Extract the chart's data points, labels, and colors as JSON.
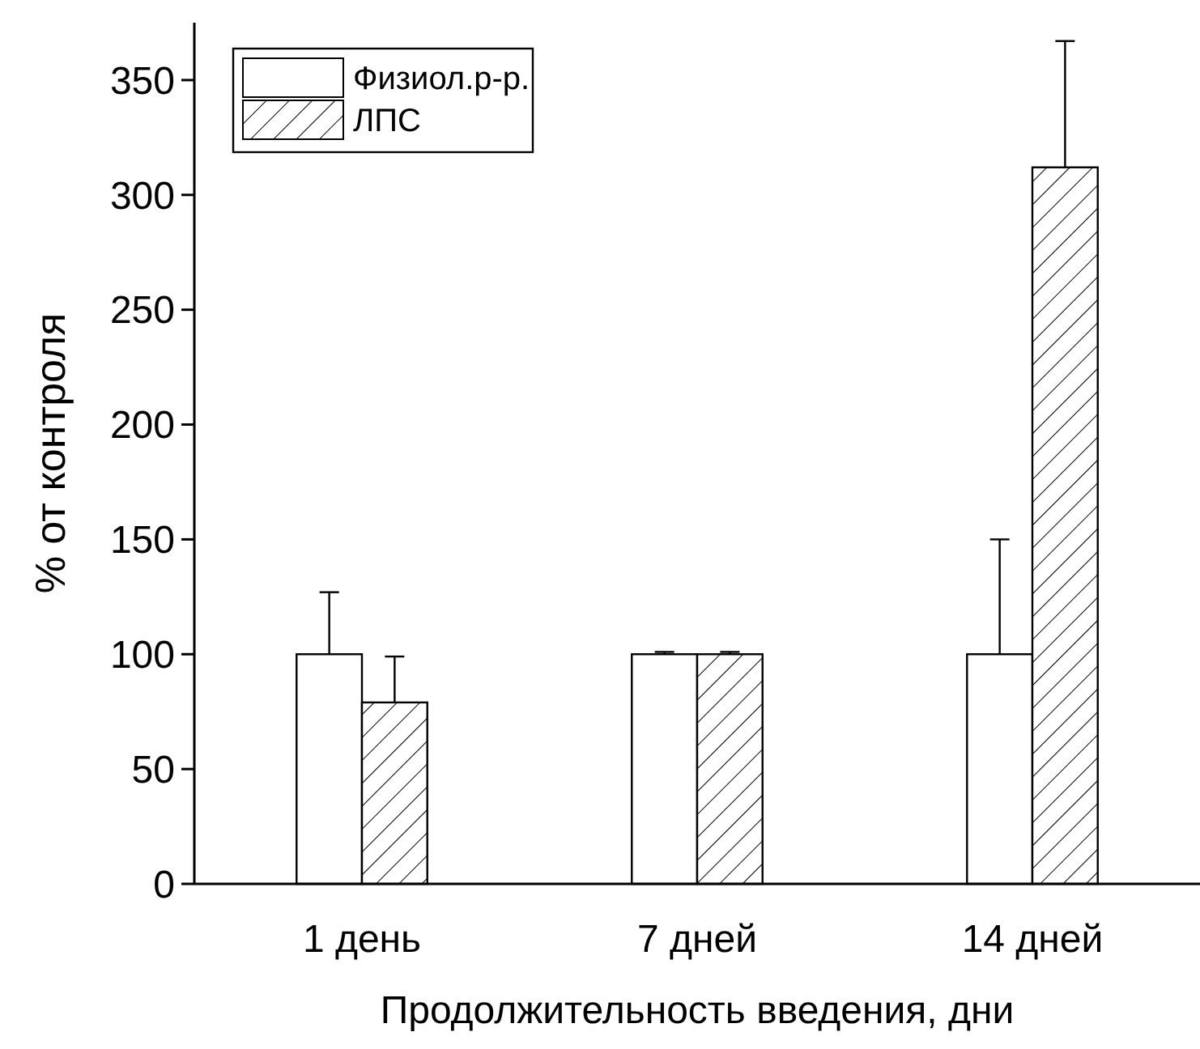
{
  "chart_data": {
    "type": "bar",
    "xlabel": "Продолжительность введения, дни",
    "ylabel": "% от контроля",
    "categories": [
      "1 день",
      "7 дней",
      "14 дней"
    ],
    "series": [
      {
        "name": "Физиол.р-р.",
        "color": "#ffffff",
        "values": [
          100,
          100,
          100
        ],
        "errors": [
          27,
          1,
          50
        ]
      },
      {
        "name": "ЛПС",
        "color": "#000000",
        "values": [
          79,
          100,
          312
        ],
        "errors": [
          20,
          1,
          55
        ]
      }
    ],
    "ylim": [
      0,
      375
    ],
    "yticks": [
      0,
      50,
      100,
      150,
      200,
      250,
      300,
      350
    ],
    "grid": false,
    "legend": "top left"
  }
}
